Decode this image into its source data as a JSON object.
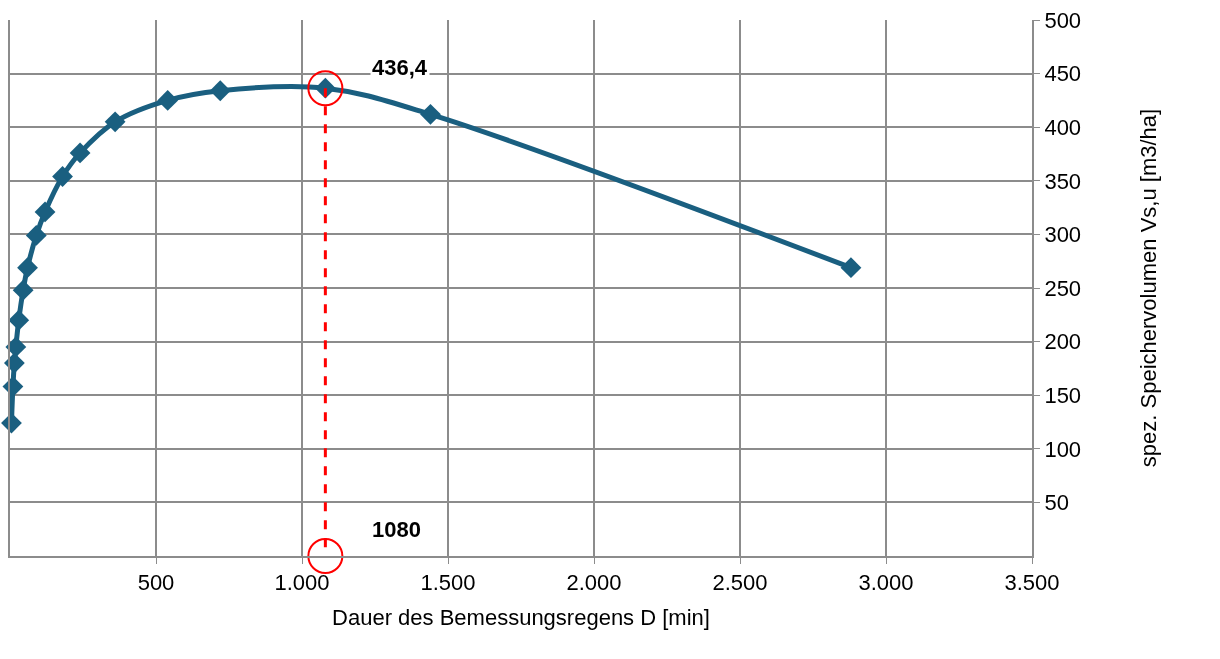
{
  "chart_data": {
    "type": "line",
    "xlabel": "Dauer des Bemessungsregens D [min]",
    "ylabel": "spez. Speichervolumen Vs,u [m3/ha]",
    "series": [
      {
        "color": "#1a5f80",
        "marker": "diamond",
        "line_style": "solid",
        "x": [
          5,
          10,
          15,
          20,
          30,
          45,
          60,
          90,
          120,
          180,
          240,
          360,
          540,
          720,
          1080,
          1440,
          2880
        ],
        "values": [
          124,
          158,
          180,
          195,
          220,
          248,
          269,
          299,
          321,
          354,
          376,
          405,
          425,
          434,
          436.4,
          412,
          269
        ]
      },
      {
        "type": "line",
        "color": "#ff0000",
        "marker": "circle",
        "line_style": "dashed",
        "x": [
          1080,
          1080
        ],
        "values": [
          436.4,
          0
        ]
      }
    ],
    "annotations": [
      {
        "text": "436,4",
        "x": 1080,
        "y": 436.4
      },
      {
        "text": "1080",
        "x": 1080,
        "y": 0
      }
    ],
    "xlim": [
      0,
      3500
    ],
    "ylim": [
      0,
      500
    ],
    "xticks": [
      {
        "value": 500,
        "label": "500"
      },
      {
        "value": 1000,
        "label": "1.000"
      },
      {
        "value": 1500,
        "label": "1.500"
      },
      {
        "value": 2000,
        "label": "2.000"
      },
      {
        "value": 2500,
        "label": "2.500"
      },
      {
        "value": 3000,
        "label": "3.000"
      },
      {
        "value": 3500,
        "label": "3.500"
      }
    ],
    "yticks": [
      50,
      100,
      150,
      200,
      250,
      300,
      350,
      400,
      450,
      500
    ],
    "grid": true
  }
}
